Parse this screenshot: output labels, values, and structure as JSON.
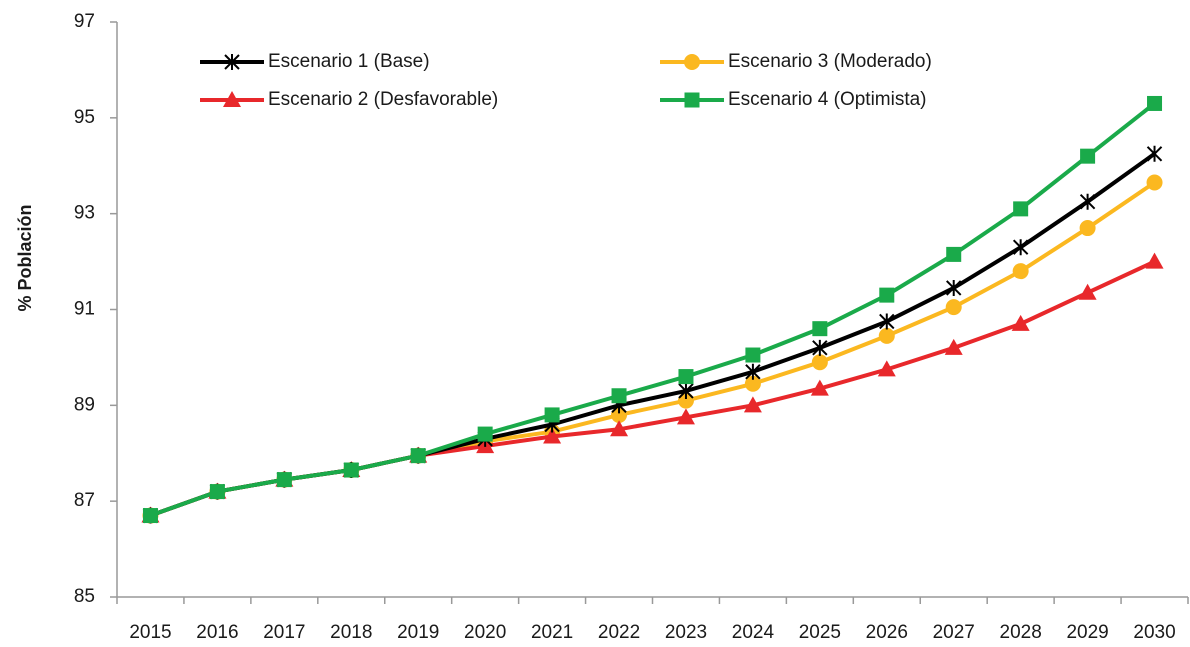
{
  "chart_data": {
    "type": "line",
    "y_label": "% Población",
    "categories": [
      "2015",
      "2016",
      "2017",
      "2018",
      "2019",
      "2020",
      "2021",
      "2022",
      "2023",
      "2024",
      "2025",
      "2026",
      "2027",
      "2028",
      "2029",
      "2030"
    ],
    "series": [
      {
        "name": "Escenario 1 (Base)",
        "color": "#000000",
        "marker": "star",
        "values": [
          86.7,
          87.2,
          87.45,
          87.65,
          87.95,
          88.3,
          88.6,
          89.0,
          89.3,
          89.7,
          90.2,
          90.75,
          91.45,
          92.3,
          93.25,
          94.25
        ]
      },
      {
        "name": "Escenario 2 (Desfavorable)",
        "color": "#e8282b",
        "marker": "triangle",
        "values": [
          86.7,
          87.2,
          87.45,
          87.65,
          87.95,
          88.15,
          88.35,
          88.5,
          88.75,
          89.0,
          89.35,
          89.75,
          90.2,
          90.7,
          91.35,
          92.0
        ]
      },
      {
        "name": "Escenario 3 (Moderado)",
        "color": "#fbb820",
        "marker": "circle",
        "values": [
          86.7,
          87.2,
          87.45,
          87.65,
          87.95,
          88.25,
          88.45,
          88.8,
          89.1,
          89.45,
          89.9,
          90.45,
          91.05,
          91.8,
          92.7,
          93.65
        ]
      },
      {
        "name": "Escenario 4 (Optimista)",
        "color": "#1aaa4a",
        "marker": "square",
        "values": [
          86.7,
          87.2,
          87.45,
          87.65,
          87.95,
          88.4,
          88.8,
          89.2,
          89.6,
          90.05,
          90.6,
          91.3,
          92.15,
          93.1,
          94.2,
          95.3
        ]
      }
    ],
    "ylim": [
      85,
      97
    ],
    "yticks": [
      85,
      87,
      89,
      91,
      93,
      95,
      97
    ],
    "grid": false
  }
}
